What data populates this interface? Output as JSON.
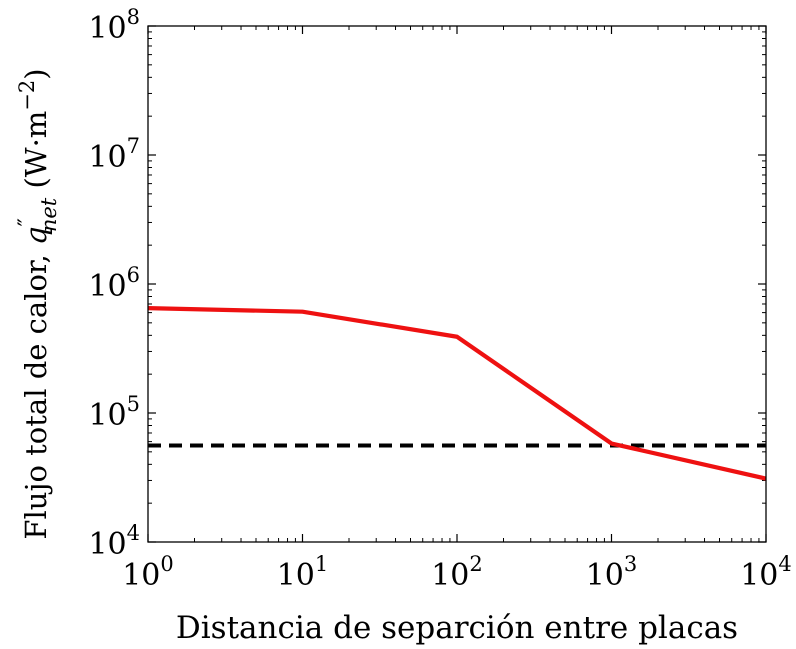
{
  "chart_data": {
    "type": "line",
    "title": "",
    "xlabel": "Distancia de separción entre placas",
    "ylabel": {
      "main": "Flujo total de calor, ",
      "symbol": "q",
      "prime": "″",
      "subscript": "net",
      "unit_open": " (W·m",
      "unit_exp": "−2",
      "unit_close": ")"
    },
    "x_scale": "log",
    "y_scale": "log",
    "xlim": [
      1,
      10000
    ],
    "ylim": [
      10000,
      100000000
    ],
    "grid": false,
    "x_ticks": [
      {
        "value": 1,
        "base": "10",
        "exp": "0"
      },
      {
        "value": 10,
        "base": "10",
        "exp": "1"
      },
      {
        "value": 100,
        "base": "10",
        "exp": "2"
      },
      {
        "value": 1000,
        "base": "10",
        "exp": "3"
      },
      {
        "value": 10000,
        "base": "10",
        "exp": "4"
      }
    ],
    "y_ticks": [
      {
        "value": 10000,
        "base": "10",
        "exp": "4"
      },
      {
        "value": 100000,
        "base": "10",
        "exp": "5"
      },
      {
        "value": 1000000,
        "base": "10",
        "exp": "6"
      },
      {
        "value": 10000000,
        "base": "10",
        "exp": "7"
      },
      {
        "value": 100000000,
        "base": "10",
        "exp": "8"
      }
    ],
    "series": [
      {
        "style": "solid",
        "color": "#ee1111",
        "x": [
          1,
          10,
          100,
          1000,
          10000
        ],
        "y": [
          650000,
          610000,
          390000,
          58000,
          31000
        ]
      },
      {
        "style": "dashed",
        "color": "#000000",
        "x": [
          1,
          10000
        ],
        "y": [
          56000,
          56000
        ]
      }
    ]
  }
}
